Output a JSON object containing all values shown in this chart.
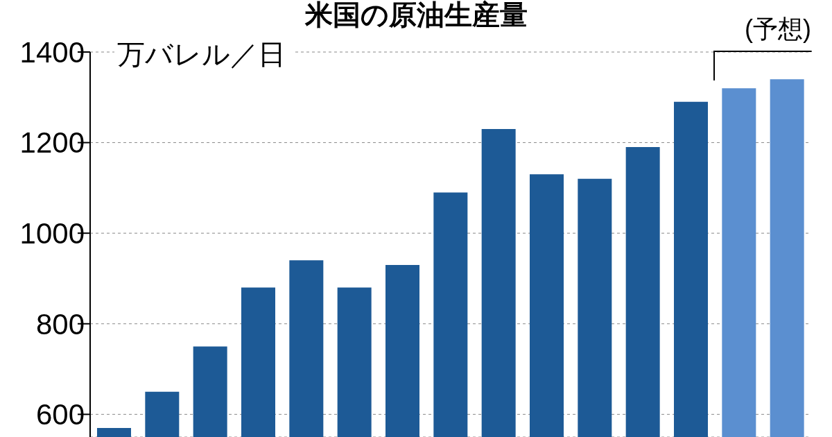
{
  "chart_data": {
    "type": "bar",
    "title": "米国の原油生産量",
    "ylabel": "万バレル／日",
    "categories": [
      null,
      null,
      null,
      null,
      null,
      null,
      null,
      null,
      null,
      null,
      null,
      null,
      null,
      null,
      null
    ],
    "values": [
      570,
      650,
      750,
      880,
      940,
      880,
      930,
      1090,
      1230,
      1130,
      1120,
      1190,
      1290,
      1320,
      1340
    ],
    "colors": [
      "#1d5a96",
      "#1d5a96",
      "#1d5a96",
      "#1d5a96",
      "#1d5a96",
      "#1d5a96",
      "#1d5a96",
      "#1d5a96",
      "#1d5a96",
      "#1d5a96",
      "#1d5a96",
      "#1d5a96",
      "#1d5a96",
      "#5b8fd0",
      "#5b8fd0"
    ],
    "ylim": [
      550,
      1400
    ],
    "yticks": [
      600,
      800,
      1000,
      1200,
      1400
    ],
    "grid": "y",
    "annotations": [
      "(予想)"
    ]
  }
}
